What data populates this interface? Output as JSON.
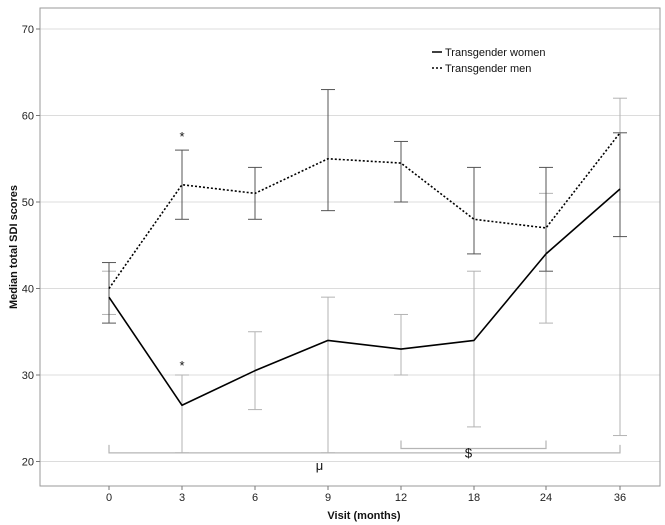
{
  "chart_data": {
    "type": "line",
    "categories": [
      "0",
      "3",
      "6",
      "9",
      "12",
      "18",
      "24",
      "36"
    ],
    "xlabel": "Visit (months)",
    "ylabel": "Median total SDI scores",
    "ylim": [
      18,
      72
    ],
    "yticks": [
      20,
      30,
      40,
      50,
      60,
      70
    ],
    "grid": "horizontal",
    "legend_position": "top-right",
    "series": [
      {
        "name": "Transgender women",
        "line_style": "solid",
        "color": "#000000",
        "errorbar_color": "#b3b3b3",
        "values": [
          39,
          26.5,
          30.5,
          34,
          33,
          34,
          44,
          51.5
        ],
        "error_low": [
          37,
          21,
          26,
          21,
          30,
          24,
          36,
          23
        ],
        "error_high": [
          42,
          30,
          35,
          39,
          37,
          42,
          51,
          62
        ]
      },
      {
        "name": "Transgender men",
        "line_style": "dotted",
        "color": "#000000",
        "errorbar_color": "#555555",
        "values": [
          40,
          52,
          51,
          55,
          54.5,
          48,
          47,
          58
        ],
        "error_low": [
          36,
          48,
          48,
          49,
          50,
          44,
          42,
          46
        ],
        "error_high": [
          43,
          56,
          54,
          63,
          57,
          54,
          54,
          58
        ]
      }
    ],
    "annotations": [
      {
        "text": "*",
        "x": "3",
        "y": 58
      },
      {
        "text": "*",
        "x": "3",
        "y": 31.5
      },
      {
        "text": "μ",
        "x_from": "0",
        "x_to": "36",
        "y": 21
      },
      {
        "text": "$",
        "x_from": "12",
        "x_to": "24",
        "y": 21.5
      }
    ],
    "brackets": [
      {
        "label": "μ",
        "from": "0",
        "to": "36",
        "y": 21
      },
      {
        "label": "$",
        "from": "12",
        "to": "24",
        "y": 21.5
      }
    ]
  }
}
